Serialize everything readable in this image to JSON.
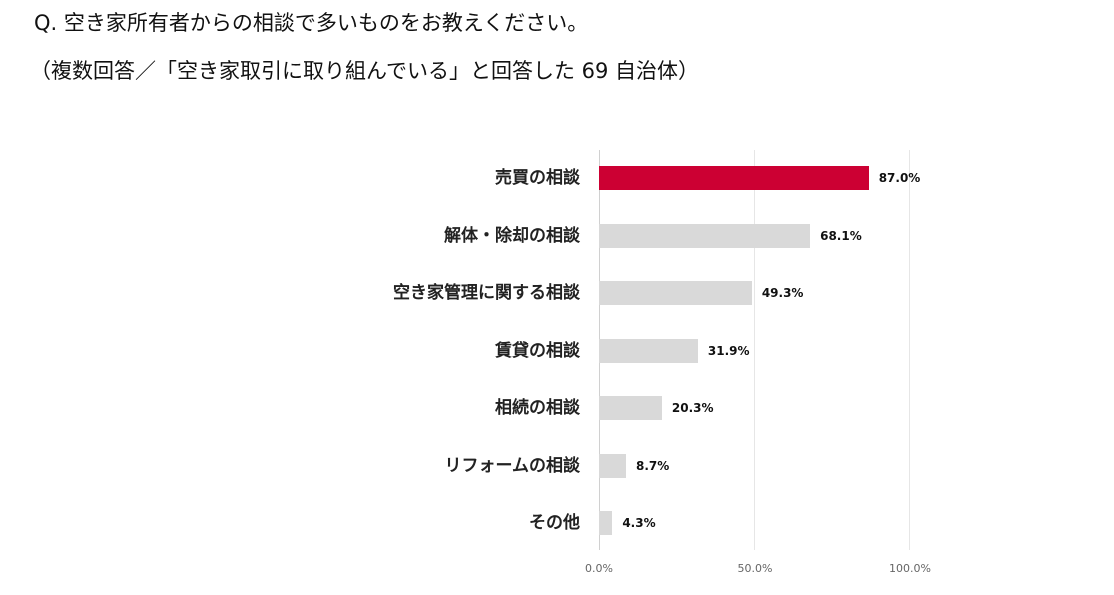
{
  "header": {
    "title": "Q. 空き家所有者からの相談で多いものをお教えください。",
    "subtitle": "（複数回答／「空き家取引に取り組んでいる」と回答した 69 自治体）"
  },
  "colors": {
    "highlight": "#cc0033",
    "default_bar": "#d9d9d9",
    "gridline": "#e6e6e6"
  },
  "axis": {
    "ticks": [
      "0.0%",
      "50.0%",
      "100.0%"
    ]
  },
  "rows": [
    {
      "label": "売買の相談",
      "value_label": "87.0%"
    },
    {
      "label": "解体・除却の相談",
      "value_label": "68.1%"
    },
    {
      "label": "空き家管理に関する相談",
      "value_label": "49.3%"
    },
    {
      "label": "賃貸の相談",
      "value_label": "31.9%"
    },
    {
      "label": "相続の相談",
      "value_label": "20.3%"
    },
    {
      "label": "リフォームの相談",
      "value_label": "8.7%"
    },
    {
      "label": "その他",
      "value_label": "4.3%"
    }
  ],
  "chart_data": {
    "type": "bar",
    "orientation": "horizontal",
    "title": "Q. 空き家所有者からの相談で多いものをお教えください。",
    "subtitle": "（複数回答／「空き家取引に取り組んでいる」と回答した 69 自治体）",
    "categories": [
      "売買の相談",
      "解体・除却の相談",
      "空き家管理に関する相談",
      "賃貸の相談",
      "相続の相談",
      "リフォームの相談",
      "その他"
    ],
    "values": [
      87.0,
      68.1,
      49.3,
      31.9,
      20.3,
      8.7,
      4.3
    ],
    "unit": "%",
    "xlabel": "",
    "ylabel": "",
    "xlim": [
      0,
      100
    ],
    "xticks": [
      "0.0%",
      "50.0%",
      "100.0%"
    ],
    "grid": true,
    "legend": null,
    "highlighted_category": "売買の相談"
  }
}
